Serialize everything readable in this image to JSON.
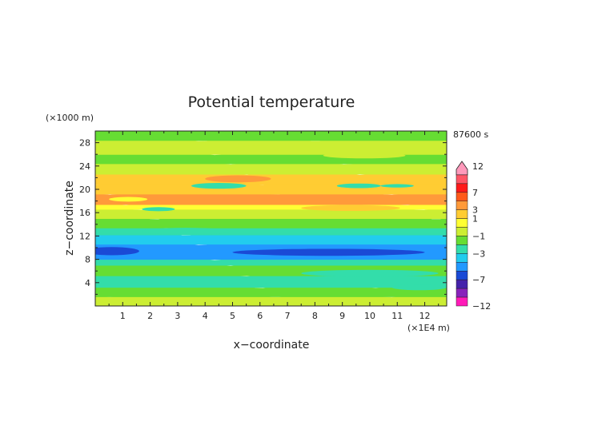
{
  "chart_data": {
    "type": "heatmap",
    "title": "Potential temperature",
    "xlabel": "x−coordinate",
    "ylabel": "z−coordinate",
    "x_unit": "(×1E4 m)",
    "y_unit": "(×1000 m)",
    "time_label": "87600 s",
    "xlim": [
      0,
      12.8
    ],
    "ylim": [
      0,
      30
    ],
    "x_ticks": [
      "1",
      "2",
      "3",
      "4",
      "5",
      "6",
      "7",
      "8",
      "9",
      "10",
      "11",
      "12"
    ],
    "y_ticks": [
      "4",
      "8",
      "12",
      "16",
      "20",
      "24",
      "28"
    ],
    "colorbar_labels": [
      "12",
      "7",
      "3",
      "1",
      "−1",
      "−3",
      "−7",
      "−12"
    ],
    "colorbar_levels": [
      12,
      10,
      7,
      5,
      3,
      2,
      1,
      0,
      -1,
      -2,
      -3,
      -5,
      -7,
      -10,
      -12
    ],
    "colorbar_colors": [
      "#ff99bb",
      "#ff5566",
      "#ff1a1a",
      "#ff5a1a",
      "#ff9a3a",
      "#ffcc33",
      "#ffff33",
      "#ccee33",
      "#66dd33",
      "#33ddaa",
      "#22ccee",
      "#2299ff",
      "#1a4ad6",
      "#4422aa",
      "#8822bb",
      "#ff1ab8"
    ],
    "bands": [
      {
        "z_from": 0,
        "z_to": 1.8,
        "value": 0.0
      },
      {
        "z_from": 1.8,
        "z_to": 3.4,
        "value": -0.6
      },
      {
        "z_from": 3.4,
        "z_to": 5.4,
        "value": -1.4
      },
      {
        "z_from": 5.4,
        "z_to": 7.2,
        "value": -0.6
      },
      {
        "z_from": 7.2,
        "z_to": 8.2,
        "value": -1.6
      },
      {
        "z_from": 8.2,
        "z_to": 10.8,
        "value": -3.6
      },
      {
        "z_from": 10.8,
        "z_to": 12.4,
        "value": -2.4
      },
      {
        "z_from": 12.4,
        "z_to": 13.6,
        "value": -1.5
      },
      {
        "z_from": 13.6,
        "z_to": 15.2,
        "value": -0.7
      },
      {
        "z_from": 15.2,
        "z_to": 16.8,
        "value": 0.5
      },
      {
        "z_from": 16.8,
        "z_to": 17.6,
        "value": 1.6
      },
      {
        "z_from": 17.6,
        "z_to": 19.4,
        "value": 3.4
      },
      {
        "z_from": 19.4,
        "z_to": 21.0,
        "value": 2.4
      },
      {
        "z_from": 21.0,
        "z_to": 22.8,
        "value": 2.6
      },
      {
        "z_from": 22.8,
        "z_to": 24.6,
        "value": 0.5
      },
      {
        "z_from": 24.6,
        "z_to": 26.2,
        "value": -0.6
      },
      {
        "z_from": 26.2,
        "z_to": 28.6,
        "value": 0.2
      },
      {
        "z_from": 28.6,
        "z_to": 30.0,
        "value": -0.6
      }
    ],
    "patches": [
      {
        "x": 4.5,
        "z": 20.6,
        "rx": 1.0,
        "rz": 0.5,
        "value": -1.5
      },
      {
        "x": 9.6,
        "z": 20.6,
        "rx": 0.8,
        "rz": 0.4,
        "value": -1.5
      },
      {
        "x": 11.0,
        "z": 20.6,
        "rx": 0.6,
        "rz": 0.3,
        "value": -1.5
      },
      {
        "x": 1.2,
        "z": 18.3,
        "rx": 0.7,
        "rz": 0.4,
        "value": 1.5
      },
      {
        "x": 2.3,
        "z": 16.6,
        "rx": 0.6,
        "rz": 0.35,
        "value": -1.5
      },
      {
        "x": 5.2,
        "z": 21.8,
        "rx": 1.2,
        "rz": 0.6,
        "value": 4.2
      },
      {
        "x": 8.5,
        "z": 18.2,
        "rx": 2.0,
        "rz": 0.6,
        "value": 4.2
      },
      {
        "x": 3.5,
        "z": 18.6,
        "rx": 1.4,
        "rz": 0.5,
        "value": 4.2
      },
      {
        "x": 9.3,
        "z": 16.8,
        "rx": 1.8,
        "rz": 0.5,
        "value": 2.4
      },
      {
        "x": 0.6,
        "z": 9.4,
        "rx": 1.0,
        "rz": 0.7,
        "value": -5.5
      },
      {
        "x": 8.5,
        "z": 9.2,
        "rx": 3.5,
        "rz": 0.6,
        "value": -5.5
      },
      {
        "x": 3.3,
        "z": 12.8,
        "rx": 1.6,
        "rz": 0.6,
        "value": -1.5
      },
      {
        "x": 10.0,
        "z": 5.6,
        "rx": 2.5,
        "rz": 0.6,
        "value": -1.5
      },
      {
        "x": 5.6,
        "z": 4.2,
        "rx": 0.8,
        "rz": 0.5,
        "value": -1.5
      },
      {
        "x": 11.8,
        "z": 3.2,
        "rx": 1.0,
        "rz": 0.5,
        "value": -1.5
      },
      {
        "x": 6.0,
        "z": 27.0,
        "rx": 0.9,
        "rz": 0.5,
        "value": 0.2
      },
      {
        "x": 9.8,
        "z": 25.8,
        "rx": 1.5,
        "rz": 0.5,
        "value": 0.2
      }
    ]
  }
}
